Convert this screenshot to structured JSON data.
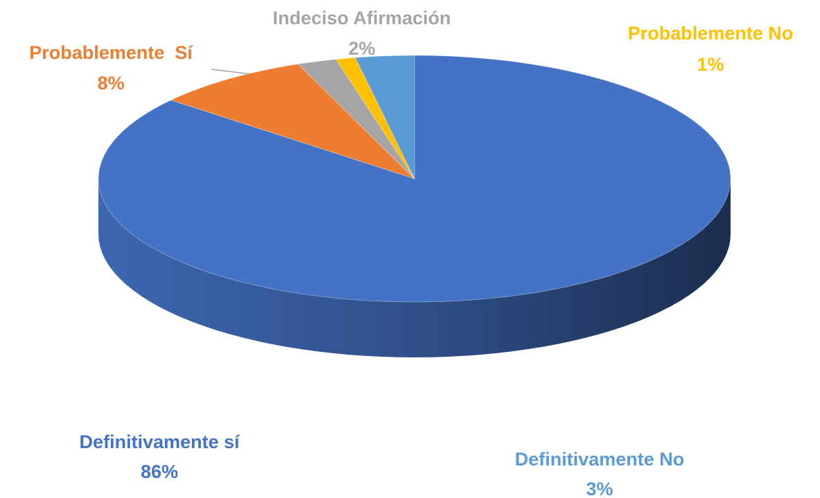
{
  "chart_data": {
    "type": "pie",
    "categories": [
      "Definitivamente sí",
      "Probablemente  Sí",
      "Indeciso Afirmación",
      "Probablemente No",
      "Definitivamente No"
    ],
    "values": [
      86,
      8,
      2,
      1,
      3
    ],
    "value_labels": [
      "86%",
      "8%",
      "2%",
      "1%",
      "3%"
    ],
    "colors": [
      "#4472c4",
      "#ed7d31",
      "#a5a5a5",
      "#ffc000",
      "#5b9bd5"
    ]
  }
}
